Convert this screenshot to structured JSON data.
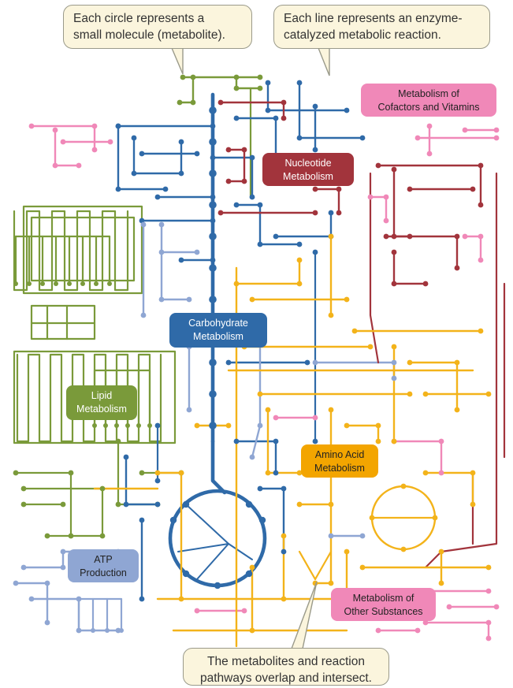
{
  "callouts": {
    "metabolite": "Each circle represents a\nsmall molecule (metabolite).",
    "reaction": "Each line represents an enzyme-\ncatalyzed metabolic reaction.",
    "overlap": "The metabolites and reaction\npathways overlap and intersect."
  },
  "pathways": [
    {
      "id": "cofactors",
      "label": "Metabolism of\nCofactors and Vitamins",
      "color": "#f088b8",
      "text_color": "#222222"
    },
    {
      "id": "nucleotide",
      "label": "Nucleotide\nMetabolism",
      "color": "#a2343c",
      "text_color": "#ffffff"
    },
    {
      "id": "carbohydrate",
      "label": "Carbohydrate\nMetabolism",
      "color": "#2f6aa8",
      "text_color": "#ffffff"
    },
    {
      "id": "lipid",
      "label": "Lipid\nMetabolism",
      "color": "#7a9a3a",
      "text_color": "#ffffff"
    },
    {
      "id": "amino",
      "label": "Amino Acid\nMetabolism",
      "color": "#f3a500",
      "text_color": "#222222"
    },
    {
      "id": "atp",
      "label": "ATP\nProduction",
      "color": "#8fa6d3",
      "text_color": "#222222"
    },
    {
      "id": "other",
      "label": "Metabolism of\nOther Substances",
      "color": "#f088b8",
      "text_color": "#222222"
    }
  ],
  "colors": {
    "line_blue": "#2f6aa8",
    "line_yellow": "#f3b31a",
    "line_green": "#7a9a3a",
    "line_red": "#a2343c",
    "line_pink": "#f088b8",
    "line_lightblue": "#8fa6d3"
  }
}
